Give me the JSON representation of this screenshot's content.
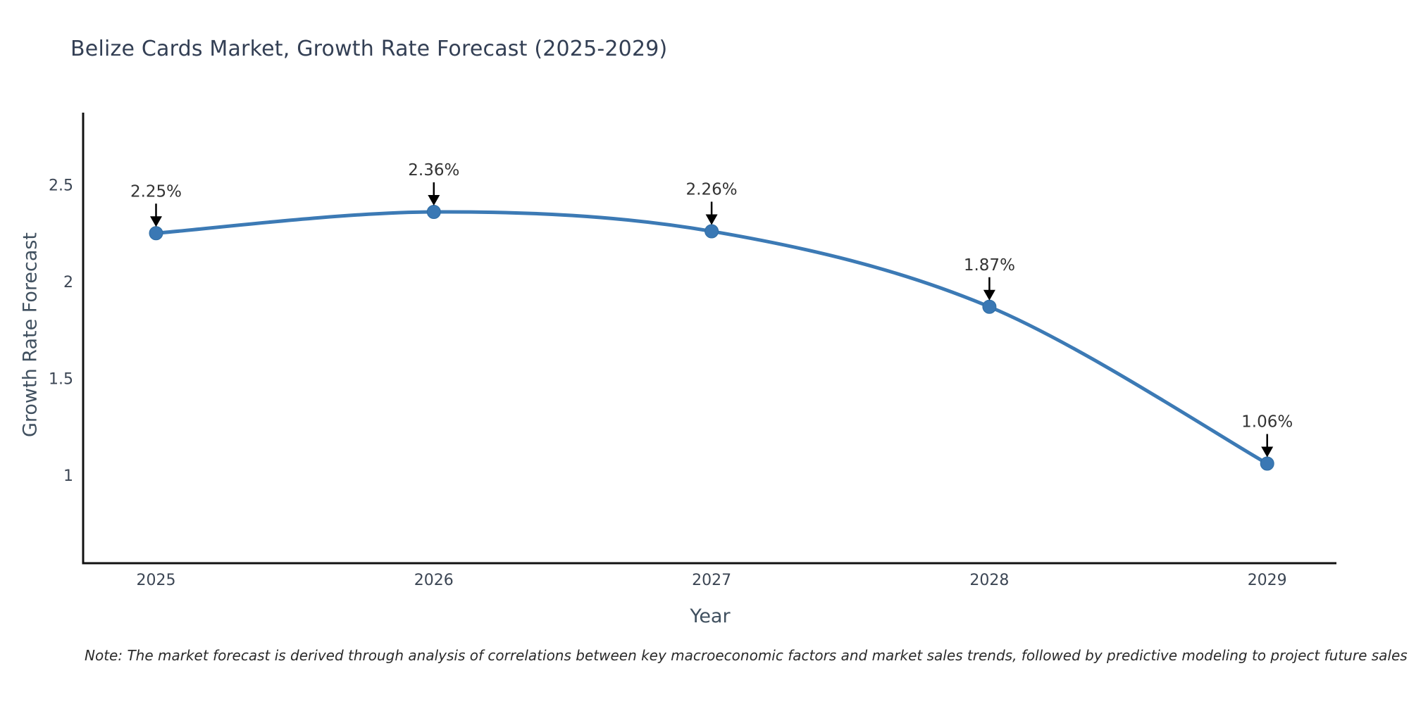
{
  "header": {
    "title": "Belize Cards Market, Growth Rate Forecast (2025-2029)"
  },
  "footnote": {
    "text": "Note: The market forecast is derived through analysis of correlations between key macroeconomic factors and market sales trends, followed by predictive modeling to project future sales"
  },
  "chart_data": {
    "type": "line",
    "title": "Belize Cards Market, Growth Rate Forecast (2025-2029)",
    "xlabel": "Year",
    "ylabel": "Growth Rate Forecast",
    "categories": [
      "2025",
      "2026",
      "2027",
      "2028",
      "2029"
    ],
    "values": [
      2.25,
      2.36,
      2.26,
      1.87,
      1.06
    ],
    "point_labels": [
      "2.25%",
      "2.36%",
      "2.26%",
      "1.87%",
      "1.06%"
    ],
    "yticks": [
      "1",
      "1.5",
      "2",
      "2.5"
    ],
    "ytick_values": [
      1,
      1.5,
      2,
      2.5
    ],
    "ylim": [
      0.55,
      2.87
    ],
    "grid": false,
    "legend": "none",
    "smooth": true,
    "colors": {
      "line": "#3c7ab5",
      "marker": "#3a78b4",
      "marker_edge": "#2e6da4",
      "annotation_arrow": "#000000",
      "point_label_text": "#333333",
      "tick_text": "#3c4654",
      "axis_spine": "#111111"
    }
  }
}
